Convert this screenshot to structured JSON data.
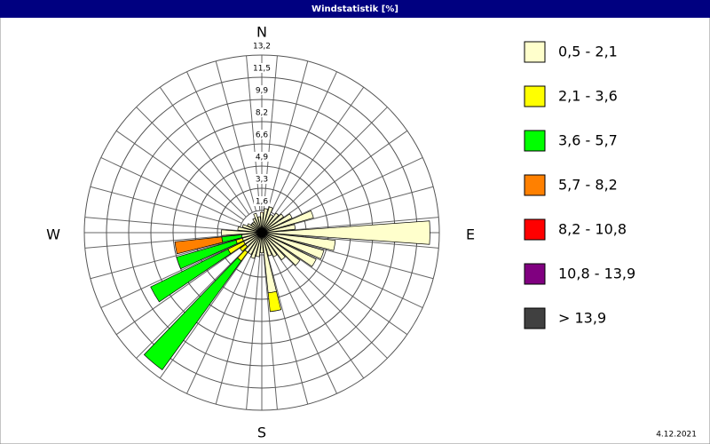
{
  "chart_data": {
    "type": "windrose",
    "title": "Windstatistik [%]",
    "directions_labels": [
      "N",
      "E",
      "S",
      "W"
    ],
    "date": "4.12.2021",
    "rlim": [
      0,
      13.2
    ],
    "rticks": [
      {
        "value": 1.65,
        "label": "1,6"
      },
      {
        "value": 3.3,
        "label": "3,3"
      },
      {
        "value": 4.95,
        "label": "4,9"
      },
      {
        "value": 6.6,
        "label": "6,6"
      },
      {
        "value": 8.25,
        "label": "8,2"
      },
      {
        "value": 9.9,
        "label": "9,9"
      },
      {
        "value": 11.55,
        "label": "11,5"
      },
      {
        "value": 13.2,
        "label": "13,2"
      }
    ],
    "series": [
      {
        "name": "0,5 - 2,1",
        "color": "#ffffcc",
        "values": [
          1.5,
          1.8,
          2.0,
          1.5,
          1.8,
          2.0,
          2.5,
          4.0,
          2.5,
          12.5,
          5.5,
          4.8,
          4.5,
          3.5,
          2.5,
          2.0,
          1.8,
          4.5,
          1.5,
          1.8,
          2.0,
          1.8,
          1.8,
          1.5,
          1.5,
          1.5,
          1.5,
          3.0,
          1.8,
          1.5,
          1.2,
          1.0,
          1.0,
          1.2,
          1.5,
          1.2
        ]
      },
      {
        "name": "2,1 - 3,6",
        "color": "#ffff00",
        "values": [
          0,
          0,
          0,
          0,
          0,
          0,
          0,
          0,
          0,
          0,
          0,
          0,
          0,
          0,
          0,
          0,
          0,
          1.4,
          0,
          0,
          0,
          0,
          0.8,
          0.5,
          1.3,
          0.5,
          0,
          0,
          0,
          0,
          0,
          0,
          0,
          0,
          0,
          0
        ]
      },
      {
        "name": "3,6 - 5,7",
        "color": "#00ff00",
        "values": [
          0,
          0,
          0,
          0,
          0,
          0,
          0,
          0,
          0,
          0,
          0,
          0,
          0,
          0,
          0,
          0,
          0,
          0,
          0,
          0,
          0,
          0,
          10.0,
          0,
          6.4,
          4.6,
          1.5,
          0,
          0,
          0,
          0,
          0,
          0,
          0,
          0,
          0
        ]
      },
      {
        "name": "5,7 - 8,2",
        "color": "#ff8000",
        "values": [
          0,
          0,
          0,
          0,
          0,
          0,
          0,
          0,
          0,
          0,
          0,
          0,
          0,
          0,
          0,
          0,
          0,
          0,
          0,
          0,
          0,
          0,
          0,
          0,
          0,
          0,
          3.5,
          0,
          0,
          0,
          0,
          0,
          0,
          0,
          0,
          0
        ]
      },
      {
        "name": "8,2 - 10,8",
        "color": "#ff0000",
        "values": [
          0,
          0,
          0,
          0,
          0,
          0,
          0,
          0,
          0,
          0,
          0,
          0,
          0,
          0,
          0,
          0,
          0,
          0,
          0,
          0,
          0,
          0,
          0,
          0,
          0,
          0,
          0,
          0,
          0,
          0,
          0,
          0,
          0,
          0,
          0,
          0
        ]
      },
      {
        "name": "10,8 - 13,9",
        "color": "#800080",
        "values": [
          0,
          0,
          0,
          0,
          0,
          0,
          0,
          0,
          0,
          0,
          0,
          0,
          0,
          0,
          0,
          0,
          0,
          0,
          0,
          0,
          0,
          0,
          0,
          0,
          0,
          0,
          0,
          0,
          0,
          0,
          0,
          0,
          0,
          0,
          0,
          0
        ]
      },
      {
        "name": "> 13,9",
        "color": "#404040",
        "values": [
          0,
          0,
          0,
          0,
          0,
          0,
          0,
          0,
          0,
          0,
          0,
          0,
          0,
          0,
          0,
          0,
          0,
          0,
          0,
          0,
          0,
          0,
          0,
          0,
          0,
          0,
          0,
          0,
          0,
          0,
          0,
          0,
          0,
          0,
          0,
          0
        ]
      }
    ]
  }
}
